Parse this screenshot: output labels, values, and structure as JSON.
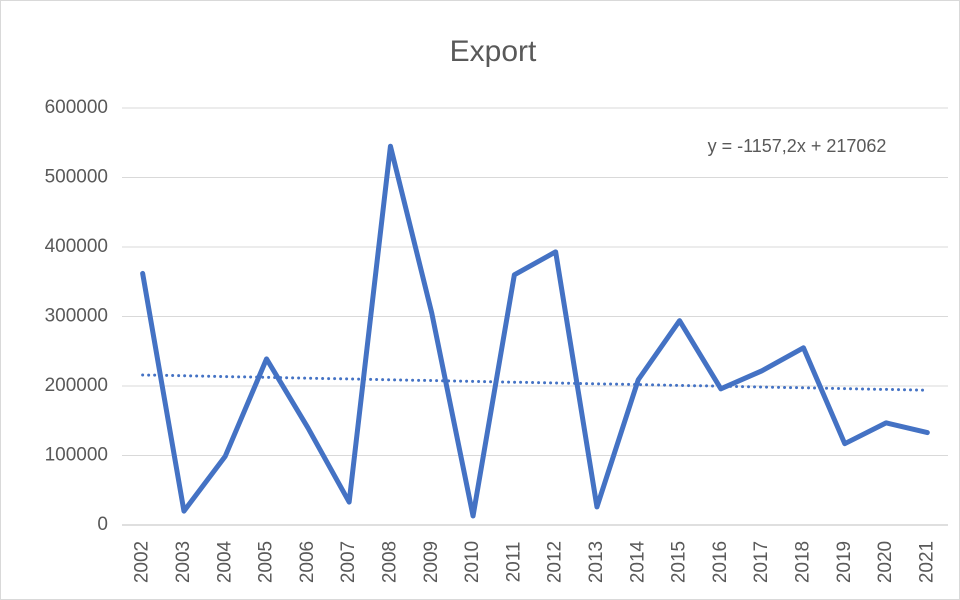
{
  "chart_data": {
    "type": "line",
    "title": "Export",
    "categories": [
      "2002",
      "2003",
      "2004",
      "2005",
      "2006",
      "2007",
      "2008",
      "2009",
      "2010",
      "2011",
      "2012",
      "2013",
      "2014",
      "2015",
      "2016",
      "2017",
      "2018",
      "2019",
      "2020",
      "2021"
    ],
    "series": [
      {
        "name": "Export",
        "color": "#4472c4",
        "values": [
          362000,
          20000,
          99000,
          239000,
          140000,
          33000,
          545000,
          305000,
          13000,
          360000,
          393000,
          26000,
          209000,
          294000,
          196000,
          222000,
          255000,
          117000,
          147000,
          133000
        ]
      }
    ],
    "trendline": {
      "label": "y = -1157,2x + 217062",
      "slope": -1157.2,
      "intercept": 217062,
      "color": "#4472c4"
    },
    "ylim": [
      0,
      600000
    ],
    "yticks": [
      0,
      100000,
      200000,
      300000,
      400000,
      500000,
      600000
    ],
    "grid": true
  }
}
